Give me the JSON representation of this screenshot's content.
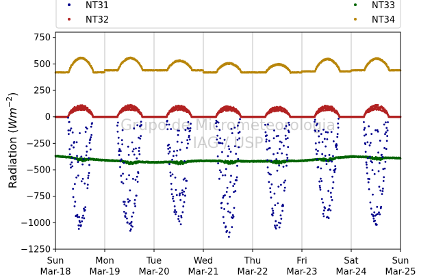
{
  "chart_data": {
    "type": "scatter",
    "ylabel": "Radiation (Wm^-2)",
    "ylabel_parts": {
      "base": "Radiation (",
      "unit": "Wm",
      "exp": "−2",
      "close": ")"
    },
    "ylim": [
      -1250,
      800
    ],
    "yticks": [
      -1250,
      -1000,
      -750,
      -500,
      -250,
      0,
      250,
      500,
      750
    ],
    "ytick_labels": [
      "−1250",
      "−1000",
      "−750",
      "−500",
      "−250",
      "0",
      "250",
      "500",
      "750"
    ],
    "xlim": [
      "2018-03-18",
      "2018-03-25"
    ],
    "xticks": [
      {
        "day": "Sun",
        "date": "Mar-18"
      },
      {
        "day": "Mon",
        "date": "Mar-19"
      },
      {
        "day": "Tue",
        "date": "Mar-20"
      },
      {
        "day": "Wed",
        "date": "Mar-21"
      },
      {
        "day": "Thu",
        "date": "Mar-22"
      },
      {
        "day": "Fri",
        "date": "Mar-23"
      },
      {
        "day": "Sat",
        "date": "Mar-24"
      },
      {
        "day": "Sun",
        "date": "Mar-25"
      }
    ],
    "grid": "vertical",
    "legend_placement": "top",
    "watermark": [
      "Grupo de Micrometeorologia",
      "IAG / USP"
    ],
    "series": [
      {
        "name": "NT31",
        "color": "#00008b",
        "night_value": 0,
        "daily_min": [
          -1070,
          -1110,
          -1050,
          -1180,
          -1120,
          -990,
          -1040
        ]
      },
      {
        "name": "NT32",
        "color": "#b22222",
        "night_value": 0,
        "daily_peak": [
          115,
          115,
          110,
          105,
          100,
          110,
          115
        ]
      },
      {
        "name": "NT33",
        "color": "#006400",
        "values_approx": [
          [
            "2018-03-18",
            -370
          ],
          [
            "2018-03-19",
            -410
          ],
          [
            "2018-03-20",
            -430
          ],
          [
            "2018-03-21",
            -415
          ],
          [
            "2018-03-22",
            -420
          ],
          [
            "2018-03-23",
            -415
          ],
          [
            "2018-03-24",
            -375
          ],
          [
            "2018-03-25",
            -390
          ]
        ]
      },
      {
        "name": "NT34",
        "color": "#b8860b",
        "night_values": [
          420,
          440,
          440,
          420,
          420,
          430,
          440
        ],
        "daily_peak": [
          555,
          555,
          530,
          505,
          495,
          545,
          550
        ]
      }
    ]
  }
}
